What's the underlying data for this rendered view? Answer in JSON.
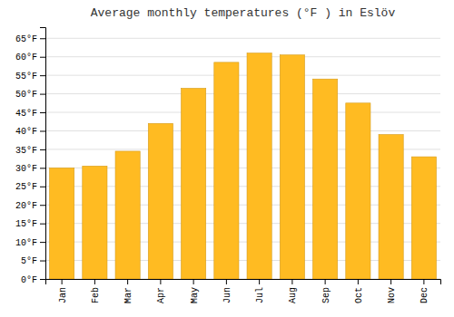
{
  "chart_data": {
    "type": "bar",
    "title": "Average monthly temperatures (°F ) in Eslöv",
    "categories": [
      "Jan",
      "Feb",
      "Mar",
      "Apr",
      "May",
      "Jun",
      "Jul",
      "Aug",
      "Sep",
      "Oct",
      "Nov",
      "Dec"
    ],
    "values": [
      30,
      30.5,
      34.5,
      42,
      51.5,
      58.5,
      61,
      60.5,
      54,
      47.5,
      39,
      33
    ],
    "color": "#FFBB22",
    "ylim": [
      0,
      68
    ],
    "yticks": [
      {
        "value": 0,
        "label": "0°F"
      },
      {
        "value": 5,
        "label": "5°F"
      },
      {
        "value": 10,
        "label": "10°F"
      },
      {
        "value": 15,
        "label": "15°F"
      },
      {
        "value": 20,
        "label": "20°F"
      },
      {
        "value": 25,
        "label": "25°F"
      },
      {
        "value": 30,
        "label": "30°F"
      },
      {
        "value": 35,
        "label": "35°F"
      },
      {
        "value": 40,
        "label": "40°F"
      },
      {
        "value": 45,
        "label": "45°F"
      },
      {
        "value": 50,
        "label": "50°F"
      },
      {
        "value": 55,
        "label": "55°F"
      },
      {
        "value": 60,
        "label": "60°F"
      },
      {
        "value": 65,
        "label": "65°F"
      }
    ],
    "grid": true
  }
}
